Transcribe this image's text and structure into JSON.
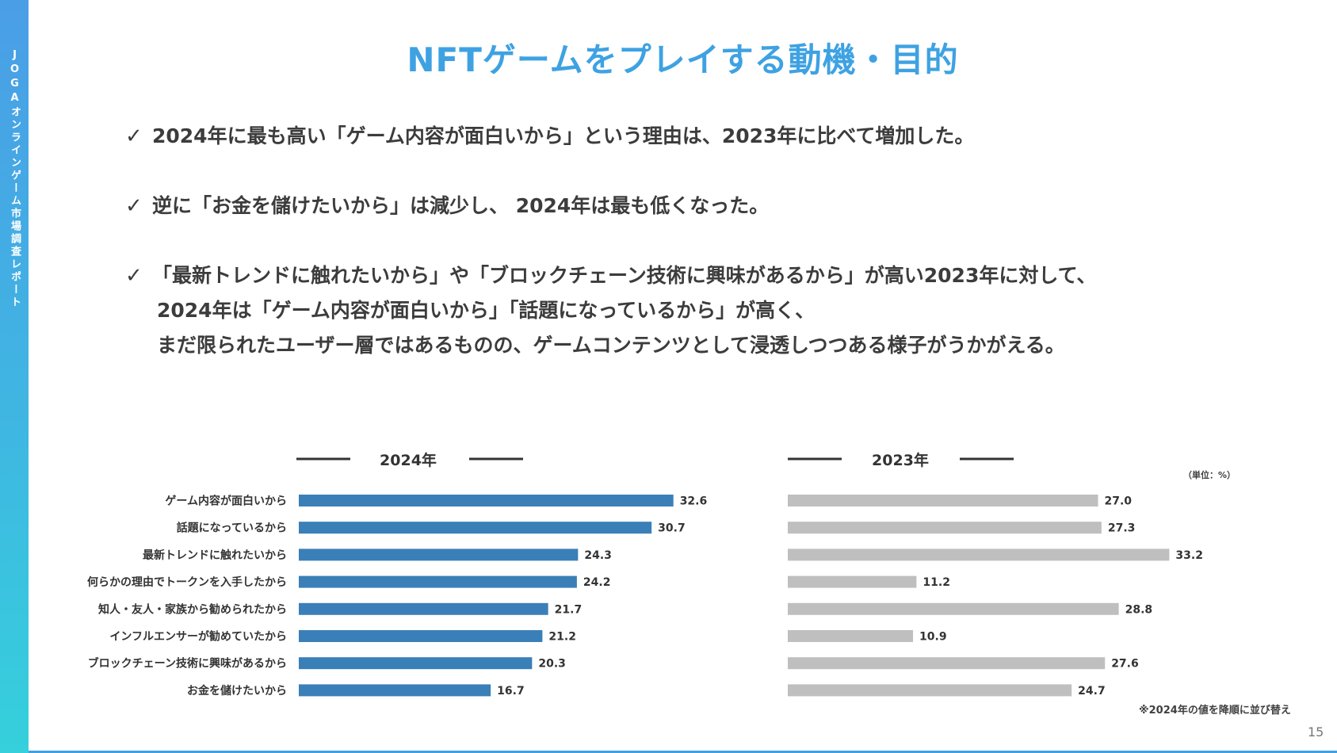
{
  "sidebar": {
    "label": "JOGAオンラインゲーム市場調査レポート"
  },
  "title": "NFTゲームをプレイする動機・目的",
  "bullets": {
    "check_mark": "✓",
    "b1": "2024年に最も高い「ゲーム内容が面白いから」という理由は、2023年に比べて増加した。",
    "b2": "逆に「お金を儲けたいから」は減少し、 2024年は最も低くなった。",
    "b3_line1": "「最新トレンドに触れたいから」や「ブロックチェーン技術に興味があるから」が高い2023年に対して、",
    "b3_line2": "2024年は「ゲーム内容が面白いから」「話題になっているから」が高く、",
    "b3_line3": "まだ限られたユーザー層ではあるものの、ゲームコンテンツとして浸透しつつある様子がうかがえる。"
  },
  "unit_label": "（単位：%）",
  "footnote": "※2024年の値を降順に並び替え",
  "page_number": "15",
  "colors": {
    "accent": "#3ea2e2",
    "bar_2024": "#3a7fb8",
    "bar_2023": "#bfbfbf"
  },
  "chart_data": {
    "type": "bar",
    "orientation": "horizontal",
    "categories": [
      "ゲーム内容が面白いから",
      "話題になっているから",
      "最新トレンドに触れたいから",
      "何らかの理由でトークンを入手したから",
      "知人・友人・家族から勧められたから",
      "インフルエンサーが勧めていたから",
      "ブロックチェーン技術に興味があるから",
      "お金を儲けたいから"
    ],
    "series": [
      {
        "name": "2024年",
        "values": [
          32.6,
          30.7,
          24.3,
          24.2,
          21.7,
          21.2,
          20.3,
          16.7
        ]
      },
      {
        "name": "2023年",
        "values": [
          27.0,
          27.3,
          33.2,
          11.2,
          28.8,
          10.9,
          27.6,
          24.7
        ]
      }
    ],
    "xlim": [
      0,
      40
    ],
    "unit": "%"
  }
}
